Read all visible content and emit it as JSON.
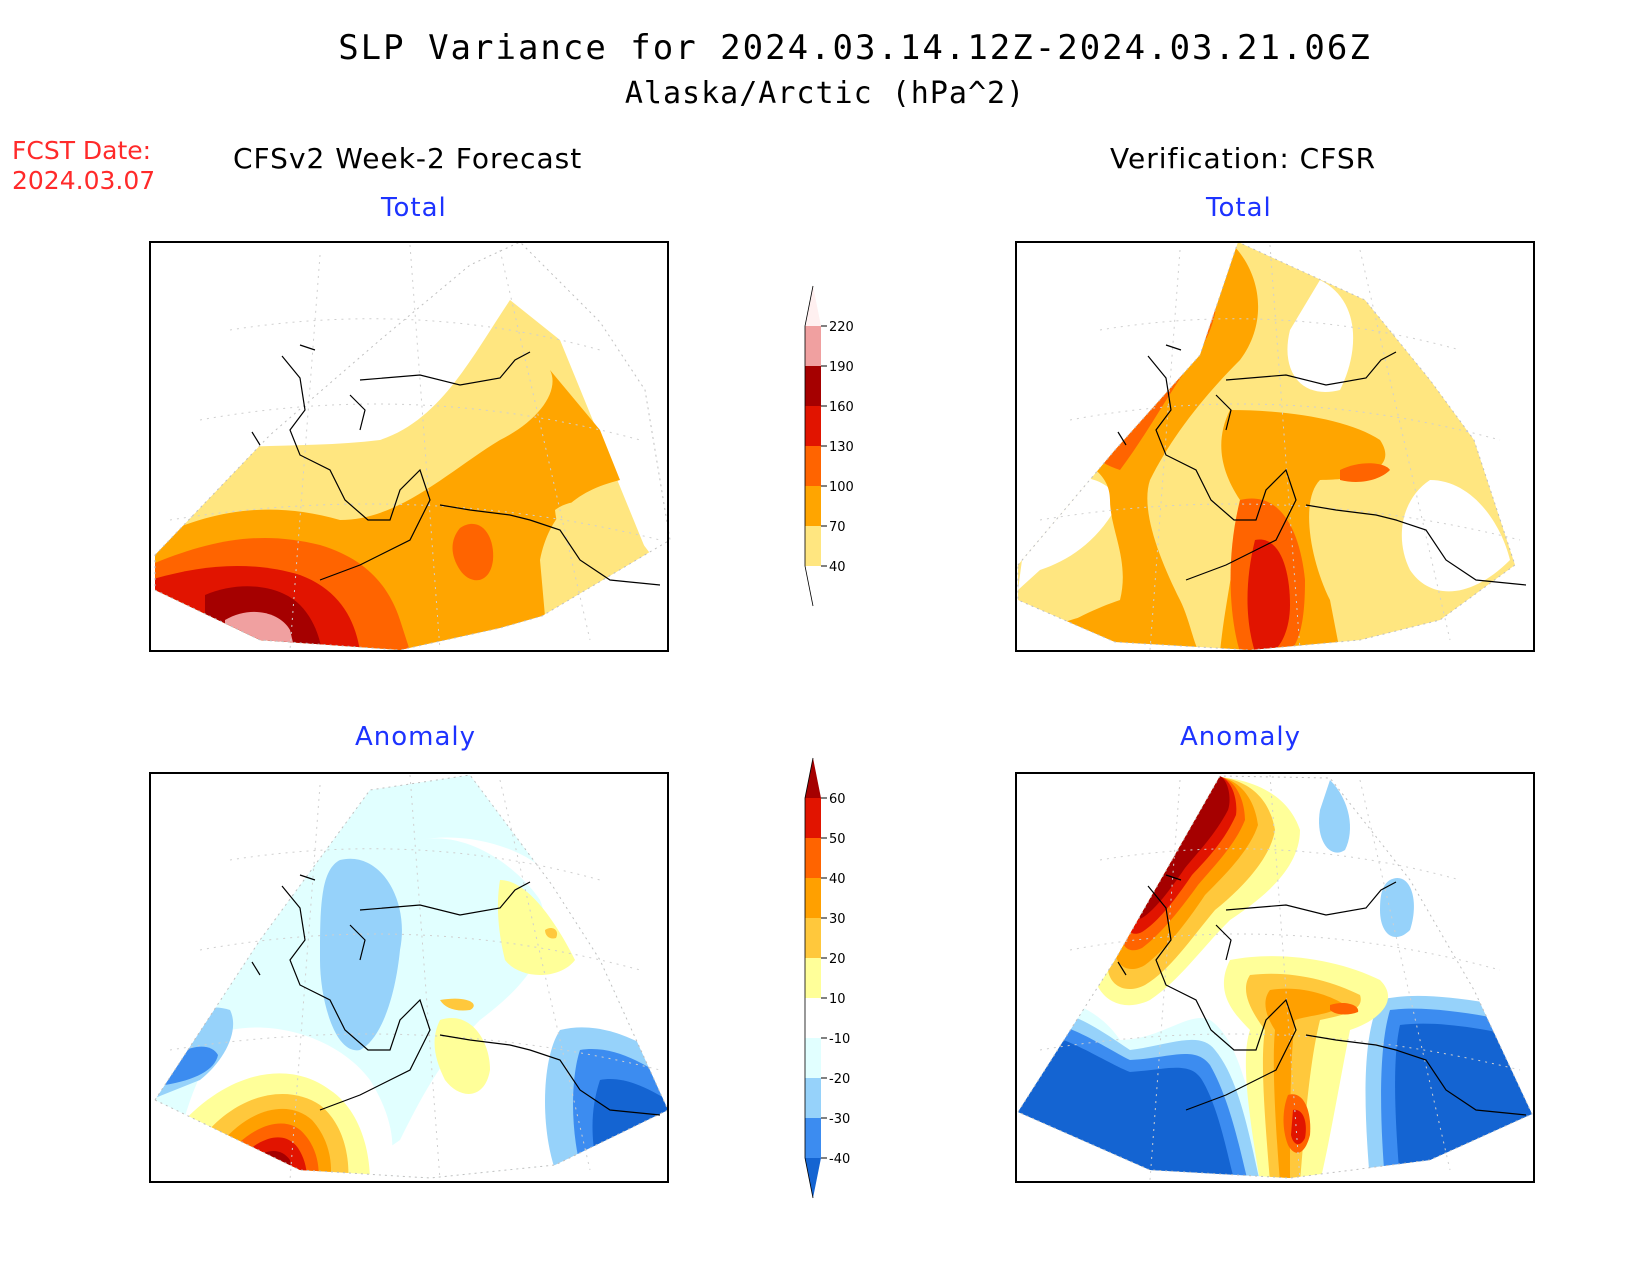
{
  "header": {
    "title": "SLP Variance for 2024.03.14.12Z-2024.03.21.06Z",
    "subtitle": "Alaska/Arctic (hPa^2)"
  },
  "fcst_date": {
    "label": "FCST Date:",
    "value": "2024.03.07"
  },
  "columns": {
    "left": "CFSv2 Week-2 Forecast",
    "right": "Verification: CFSR"
  },
  "panels": [
    {
      "id": "forecast-total",
      "title": "Total"
    },
    {
      "id": "verification-total",
      "title": "Total"
    },
    {
      "id": "forecast-anomaly",
      "title": "Anomaly"
    },
    {
      "id": "verification-anomaly",
      "title": "Anomaly"
    }
  ],
  "colorbars": {
    "total": {
      "levels": [
        "40",
        "70",
        "100",
        "130",
        "160",
        "190",
        "220"
      ],
      "colors": [
        "#ffffff",
        "#ffe680",
        "#ffa500",
        "#ff6400",
        "#e11400",
        "#a50000",
        "#f0a0a0",
        "#fff0f0"
      ]
    },
    "anomaly": {
      "levels": [
        "-40",
        "-30",
        "-20",
        "-10",
        "10",
        "20",
        "30",
        "40",
        "50",
        "60"
      ],
      "colors": [
        "#1464d2",
        "#3c8cf0",
        "#96d2fa",
        "#e1ffff",
        "#ffffff",
        "#ffff99",
        "#ffc83c",
        "#ffa000",
        "#ff6400",
        "#e11400",
        "#a50000"
      ]
    }
  },
  "legend_colors": {
    "white": "#ffffff",
    "light_yellow": "#ffe680",
    "orange": "#ffa500",
    "dark_orange": "#ff6400",
    "red": "#e11400",
    "dark_red": "#a50000",
    "pink": "#f0a0a0",
    "light_cyan": "#e1ffff",
    "light_blue": "#96d2fa",
    "mid_blue": "#3c8cf0",
    "blue": "#1464d2"
  }
}
